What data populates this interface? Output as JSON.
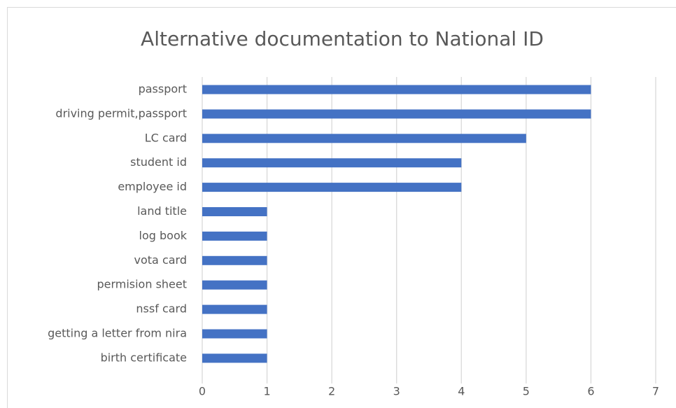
{
  "chart_data": {
    "type": "bar",
    "orientation": "horizontal",
    "title": "Alternative documentation to National ID",
    "categories": [
      "passport",
      "driving permit,passport",
      "LC card",
      "student id",
      "employee id",
      "land title",
      "log book",
      "vota card",
      "permision sheet",
      "nssf card",
      "getting a letter from nira",
      "birth certificate"
    ],
    "values": [
      6,
      6,
      5,
      4,
      4,
      1,
      1,
      1,
      1,
      1,
      1,
      1
    ],
    "color": "#4472c4",
    "xlim": [
      0,
      7
    ],
    "xticks": [
      0,
      1,
      2,
      3,
      4,
      5,
      6,
      7
    ],
    "grid": true
  }
}
